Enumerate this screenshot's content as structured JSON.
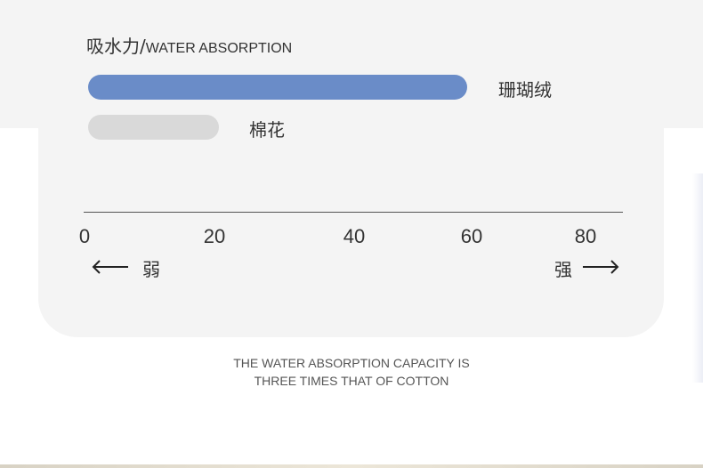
{
  "chart_data": {
    "type": "bar",
    "orientation": "horizontal",
    "title": "吸水力/",
    "title_en": "WATER ABSORPTION",
    "categories": [
      "珊瑚绒",
      "棉花"
    ],
    "values": [
      60,
      20
    ],
    "xlim": [
      0,
      80
    ],
    "x_ticks": [
      0,
      20,
      40,
      60,
      80
    ],
    "direction_low": "弱",
    "direction_high": "强",
    "grid": false,
    "colors": [
      "#6a8cc8",
      "#d9d9d9"
    ]
  },
  "caption": {
    "line1": "THE WATER ABSORPTION CAPACITY IS",
    "line2": "THREE TIMES THAT OF COTTON"
  }
}
